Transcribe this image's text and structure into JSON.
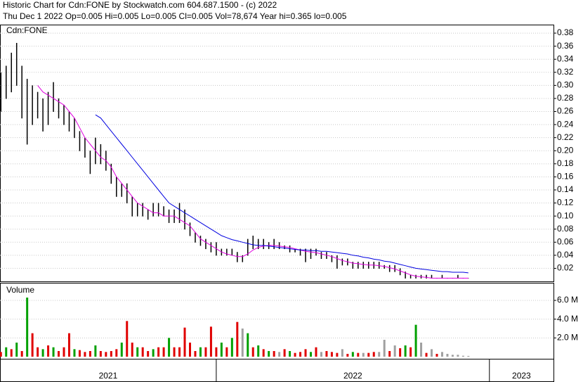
{
  "chart_data": {
    "type": "stock",
    "title": "Historic Chart for Cdn:FONE by Stockwatch.com 604.687.1500 - (c) 2022",
    "subtitle": "Thu Dec  1 2022  Op=0.005  Hi=0.005  Lo=0.005  Cl=0.005  Vol=78,674  Year hi=0.365  lo=0.005",
    "symbol": "Cdn:FONE",
    "xlim": [
      10.83,
      116.2
    ],
    "periods": [
      {
        "label": "2021",
        "from": 0,
        "to": 52
      },
      {
        "label": "2022",
        "from": 52,
        "to": 104
      },
      {
        "label": "2023",
        "from": 104,
        "to": 156
      }
    ],
    "x": [
      11,
      12,
      13,
      14,
      15,
      16,
      17,
      18,
      19,
      20,
      21,
      22,
      23,
      24,
      25,
      26,
      27,
      28,
      29,
      30,
      31,
      32,
      33,
      34,
      35,
      36,
      37,
      38,
      39,
      40,
      41,
      42,
      43,
      44,
      45,
      46,
      47,
      48,
      49,
      50,
      51,
      52,
      53,
      54,
      55,
      56,
      57,
      58,
      59,
      60,
      61,
      62,
      63,
      64,
      65,
      66,
      67,
      68,
      69,
      70,
      71,
      72,
      73,
      74,
      75,
      76,
      77,
      78,
      79,
      80,
      81,
      82,
      83,
      84,
      85,
      86,
      87,
      88,
      89,
      90,
      91,
      92,
      93,
      94,
      95,
      96,
      97,
      98,
      99,
      100
    ],
    "high": [
      0.32,
      0.33,
      0.35,
      0.365,
      0.33,
      0.31,
      0.3,
      0.29,
      0.28,
      0.29,
      0.305,
      0.28,
      0.27,
      0.26,
      0.25,
      0.23,
      0.22,
      0.2,
      0.22,
      0.21,
      0.2,
      0.18,
      0.16,
      0.15,
      0.15,
      0.13,
      0.12,
      0.12,
      0.11,
      0.12,
      0.12,
      0.115,
      0.11,
      0.11,
      0.12,
      0.11,
      0.09,
      0.075,
      0.07,
      0.065,
      0.06,
      0.06,
      0.05,
      0.05,
      0.05,
      0.045,
      0.04,
      0.065,
      0.07,
      0.065,
      0.065,
      0.06,
      0.065,
      0.06,
      0.055,
      0.055,
      0.05,
      0.05,
      0.05,
      0.05,
      0.05,
      0.045,
      0.045,
      0.04,
      0.04,
      0.035,
      0.035,
      0.03,
      0.03,
      0.03,
      0.03,
      0.03,
      0.03,
      0.025,
      0.025,
      0.025,
      0.02,
      0.015,
      0.01,
      0.01,
      0.01,
      0.01,
      0.01,
      0.005,
      0.01,
      0.005,
      0.005,
      0.01,
      0.005,
      0.005
    ],
    "low": [
      0.26,
      0.28,
      0.29,
      0.3,
      0.25,
      0.21,
      0.24,
      0.25,
      0.23,
      0.24,
      0.26,
      0.25,
      0.24,
      0.23,
      0.22,
      0.2,
      0.19,
      0.165,
      0.18,
      0.18,
      0.17,
      0.15,
      0.13,
      0.13,
      0.12,
      0.1,
      0.1,
      0.1,
      0.095,
      0.1,
      0.1,
      0.1,
      0.09,
      0.09,
      0.09,
      0.08,
      0.07,
      0.06,
      0.055,
      0.05,
      0.045,
      0.04,
      0.04,
      0.04,
      0.04,
      0.03,
      0.03,
      0.04,
      0.05,
      0.05,
      0.05,
      0.05,
      0.05,
      0.05,
      0.05,
      0.045,
      0.045,
      0.04,
      0.03,
      0.035,
      0.04,
      0.035,
      0.035,
      0.03,
      0.02,
      0.025,
      0.025,
      0.02,
      0.02,
      0.02,
      0.02,
      0.02,
      0.02,
      0.02,
      0.015,
      0.015,
      0.01,
      0.005,
      0.005,
      0.005,
      0.005,
      0.005,
      0.005,
      0.005,
      0.005,
      0.005,
      0.005,
      0.005,
      0.005,
      0.005
    ],
    "bar_color": "#000000",
    "series": [
      {
        "color": "#e000e0",
        "values": [
          null,
          null,
          null,
          null,
          null,
          null,
          null,
          0.3,
          0.29,
          0.285,
          0.28,
          0.275,
          0.27,
          0.26,
          0.25,
          0.235,
          0.22,
          0.21,
          0.2,
          0.19,
          0.185,
          0.175,
          0.16,
          0.15,
          0.14,
          0.13,
          0.12,
          0.115,
          0.11,
          0.105,
          0.105,
          0.1,
          0.1,
          0.1,
          0.095,
          0.09,
          0.085,
          0.075,
          0.065,
          0.06,
          0.055,
          0.05,
          0.045,
          0.042,
          0.04,
          0.038,
          0.038,
          0.042,
          0.048,
          0.052,
          0.054,
          0.055,
          0.055,
          0.054,
          0.053,
          0.052,
          0.05,
          0.048,
          0.046,
          0.045,
          0.044,
          0.042,
          0.04,
          0.038,
          0.035,
          0.032,
          0.03,
          0.028,
          0.027,
          0.026,
          0.025,
          0.025,
          0.024,
          0.023,
          0.021,
          0.019,
          0.016,
          0.013,
          0.01,
          0.008,
          0.007,
          0.006,
          0.005,
          0.005,
          0.005,
          0.005,
          0.005,
          0.005,
          0.005,
          0.005
        ]
      },
      {
        "color": "#0000e0",
        "values": [
          null,
          null,
          null,
          null,
          null,
          null,
          null,
          null,
          null,
          null,
          null,
          null,
          null,
          null,
          null,
          null,
          null,
          null,
          0.255,
          0.25,
          0.24,
          0.23,
          0.22,
          0.21,
          0.2,
          0.19,
          0.18,
          0.17,
          0.16,
          0.15,
          0.14,
          0.13,
          0.12,
          0.115,
          0.11,
          0.105,
          0.1,
          0.095,
          0.09,
          0.085,
          0.08,
          0.075,
          0.07,
          0.067,
          0.064,
          0.062,
          0.06,
          0.058,
          0.056,
          0.055,
          0.055,
          0.054,
          0.053,
          0.052,
          0.051,
          0.05,
          0.049,
          0.048,
          0.048,
          0.047,
          0.047,
          0.046,
          0.046,
          0.045,
          0.044,
          0.043,
          0.042,
          0.04,
          0.039,
          0.037,
          0.036,
          0.034,
          0.033,
          0.031,
          0.03,
          0.028,
          0.026,
          0.024,
          0.022,
          0.02,
          0.019,
          0.018,
          0.017,
          0.016,
          0.015,
          0.015,
          0.014,
          0.014,
          0.014,
          0.013
        ]
      }
    ],
    "ylim": [
      0,
      0.393
    ],
    "yticks": [
      0.02,
      0.04,
      0.06,
      0.08,
      {
        "value": 0.1,
        "label": "0.10"
      },
      0.12,
      0.14,
      0.16,
      0.18,
      {
        "value": 0.2,
        "label": "0.20"
      },
      0.22,
      0.24,
      0.26,
      0.28,
      {
        "value": 0.3,
        "label": "0.30"
      },
      0.32,
      0.34,
      0.36,
      0.38
    ],
    "grid": true,
    "volume": {
      "label": "Volume",
      "values": [
        500000,
        1000000,
        800000,
        1500000,
        600000,
        6300000,
        2500000,
        1000000,
        800000,
        1200000,
        1000000,
        600000,
        1000000,
        2500000,
        800000,
        700000,
        500000,
        600000,
        1200000,
        600000,
        500000,
        600000,
        800000,
        1500000,
        3800000,
        1500000,
        1000000,
        1000000,
        600000,
        800000,
        1000000,
        1000000,
        2000000,
        1000000,
        1000000,
        3100000,
        1500000,
        600000,
        1000000,
        1000000,
        3200000,
        1000000,
        1500000,
        1000000,
        2000000,
        3700000,
        3000000,
        2500000,
        1000000,
        1200000,
        800000,
        600000,
        600000,
        500000,
        800000,
        600000,
        400000,
        500000,
        800000,
        500000,
        1000000,
        500000,
        600000,
        500000,
        400000,
        800000,
        300000,
        500000,
        400000,
        400000,
        400000,
        500000,
        500000,
        1800000,
        600000,
        1200000,
        900000,
        1200000,
        1000000,
        3400000,
        1500000,
        400000,
        800000,
        300000,
        500000,
        300000,
        200000,
        200000,
        100000,
        80000
      ],
      "colors": [
        "#e00000",
        "#00a000",
        "#e00000",
        "#00a000",
        "#e00000",
        "#00a000",
        "#e00000",
        "#e00000",
        "#00a000",
        "#e00000",
        "#00a000",
        "#e00000",
        "#e00000",
        "#e00000",
        "#00a000",
        "#e00000",
        "#e00000",
        "#e00000",
        "#00a000",
        "#e00000",
        "#e00000",
        "#e00000",
        "#e00000",
        "#00a000",
        "#e00000",
        "#e00000",
        "#00a000",
        "#e00000",
        "#e00000",
        "#00a000",
        "#e00000",
        "#e00000",
        "#00a000",
        "#e00000",
        "#e00000",
        "#e00000",
        "#e00000",
        "#e00000",
        "#00a000",
        "#e00000",
        "#e00000",
        "#e00000",
        "#00a000",
        "#e00000",
        "#00a000",
        "#e00000",
        "#a0a0a0",
        "#00a000",
        "#e00000",
        "#00a000",
        "#e00000",
        "#00a000",
        "#e00000",
        "#a0a0a0",
        "#e00000",
        "#00a000",
        "#e00000",
        "#e00000",
        "#e00000",
        "#00a000",
        "#e00000",
        "#a0a0a0",
        "#e00000",
        "#e00000",
        "#e00000",
        "#a0a0a0",
        "#e00000",
        "#00a000",
        "#e00000",
        "#a0a0a0",
        "#e00000",
        "#e00000",
        "#a0a0a0",
        "#a0a0a0",
        "#e00000",
        "#a0a0a0",
        "#e00000",
        "#00a000",
        "#e00000",
        "#00a000",
        "#a0a0a0",
        "#e00000",
        "#a0a0a0",
        "#e00000",
        "#a0a0a0",
        "#a0a0a0",
        "#a0a0a0",
        "#a0a0a0",
        "#a0a0a0",
        "#a0a0a0"
      ],
      "ylim": [
        0,
        7800000
      ],
      "yticks": [
        {
          "value": 2000000,
          "label": "2.0 M"
        },
        {
          "value": 4000000,
          "label": "4.0 M"
        },
        {
          "value": 6000000,
          "label": "6.0 M"
        }
      ]
    }
  }
}
